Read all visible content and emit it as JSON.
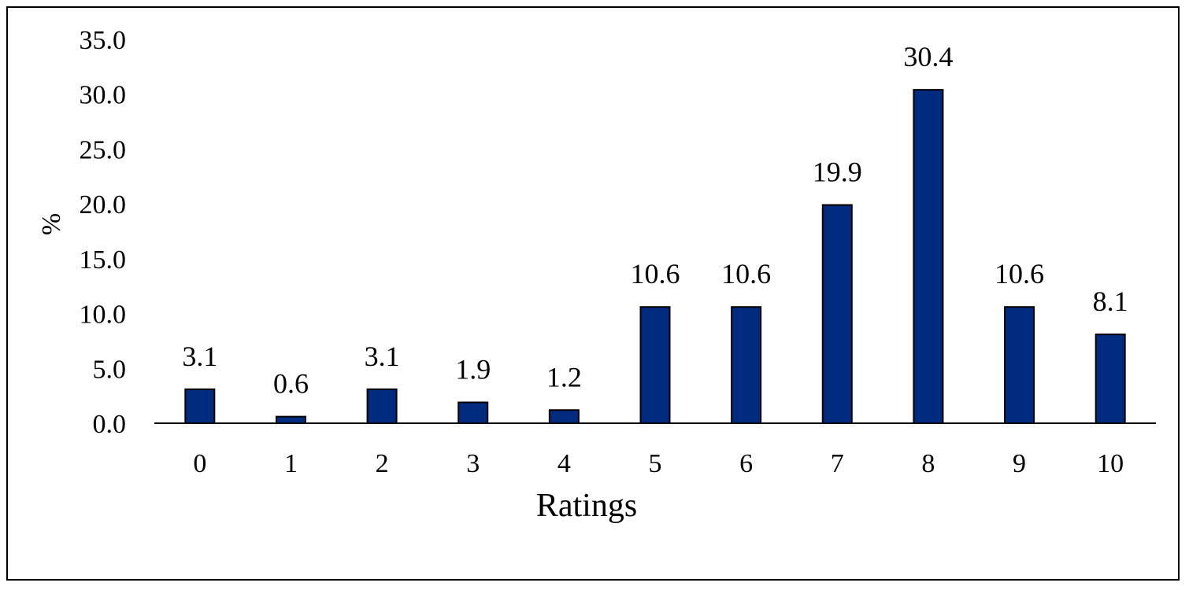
{
  "chart_data": {
    "type": "bar",
    "title": "",
    "xlabel": "Ratings",
    "ylabel": "%",
    "categories": [
      "0",
      "1",
      "2",
      "3",
      "4",
      "5",
      "6",
      "7",
      "8",
      "9",
      "10"
    ],
    "values": [
      3.1,
      0.6,
      3.1,
      1.9,
      1.2,
      10.6,
      10.6,
      19.9,
      30.4,
      10.6,
      8.1
    ],
    "data_labels": [
      "3.1",
      "0.6",
      "3.1",
      "1.9",
      "1.2",
      "10.6",
      "10.6",
      "19.9",
      "30.4",
      "10.6",
      "8.1"
    ],
    "ylim": [
      0,
      35
    ],
    "yticks": [
      "0.0",
      "5.0",
      "10.0",
      "15.0",
      "20.0",
      "25.0",
      "30.0",
      "35.0"
    ],
    "grid": false,
    "legend": "none",
    "bar_color": "#002B7F",
    "bar_edge_color": "#000000"
  }
}
